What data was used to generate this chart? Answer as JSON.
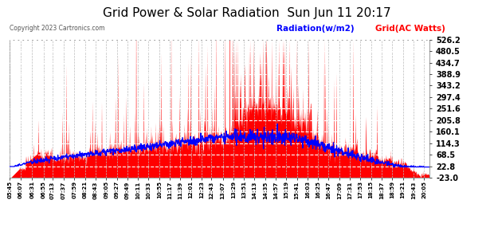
{
  "title": "Grid Power & Solar Radiation  Sun Jun 11 20:17",
  "copyright": "Copyright 2023 Cartronics.com",
  "legend_radiation": "Radiation(w/m2)",
  "legend_grid": "Grid(AC Watts)",
  "radiation_color": "#0000FF",
  "grid_fill_color": "#FF0000",
  "yticks": [
    526.2,
    480.5,
    434.7,
    388.9,
    343.2,
    297.4,
    251.6,
    205.8,
    160.1,
    114.3,
    68.5,
    22.8,
    -23.0
  ],
  "ymin": -23.0,
  "ymax": 526.2,
  "xtick_labels": [
    "05:45",
    "06:07",
    "06:31",
    "06:55",
    "07:13",
    "07:37",
    "07:59",
    "08:21",
    "08:43",
    "09:05",
    "09:27",
    "09:49",
    "10:11",
    "10:33",
    "10:55",
    "11:17",
    "11:39",
    "12:01",
    "12:23",
    "12:43",
    "13:07",
    "13:29",
    "13:51",
    "14:13",
    "14:35",
    "14:57",
    "15:19",
    "15:41",
    "16:03",
    "16:25",
    "16:47",
    "17:09",
    "17:31",
    "17:53",
    "18:15",
    "18:37",
    "18:59",
    "19:21",
    "19:43",
    "20:05"
  ],
  "background_color": "#FFFFFF",
  "plot_bg_color": "#FFFFFF",
  "grid_color": "#BBBBBB",
  "title_color": "#000000",
  "title_fontsize": 12
}
